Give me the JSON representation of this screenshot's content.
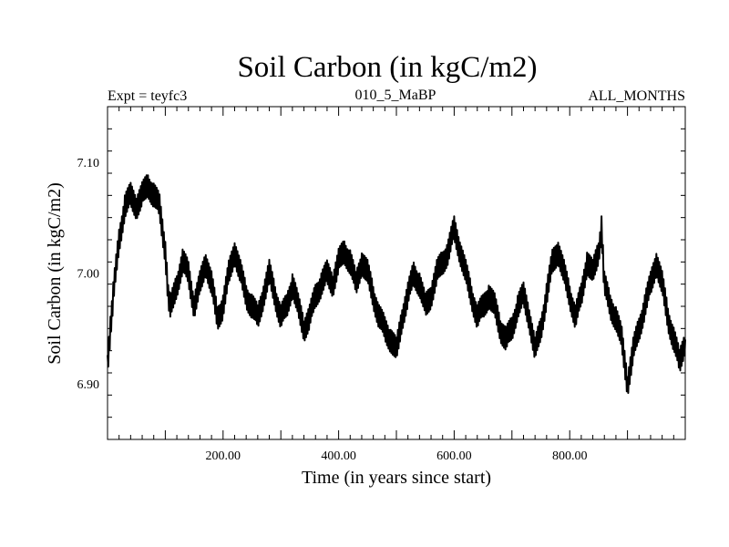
{
  "chart_data": {
    "type": "line",
    "title": "Soil Carbon (in kgC/m2)",
    "subtitle_left": "Expt = teyfc3",
    "subtitle_center": "010_5_MaBP",
    "subtitle_right": "ALL_MONTHS",
    "xlabel": "Time (in years since start)",
    "ylabel": "Soil Carbon (in kgC/m2)",
    "xlim": [
      0,
      1000
    ],
    "ylim": [
      6.85,
      7.15
    ],
    "x_ticks": [
      200,
      400,
      600,
      800
    ],
    "x_tick_labels": [
      "200.00",
      "400.00",
      "600.00",
      "800.00"
    ],
    "y_ticks": [
      6.9,
      7.0,
      7.1
    ],
    "y_tick_labels": [
      "6.90",
      "7.00",
      "7.10"
    ],
    "grid": false,
    "series": [
      {
        "color": "#000000",
        "x": [
          0,
          5,
          10,
          20,
          30,
          40,
          50,
          60,
          70,
          80,
          90,
          100,
          105,
          110,
          120,
          130,
          140,
          150,
          160,
          170,
          180,
          190,
          200,
          210,
          220,
          230,
          240,
          250,
          260,
          270,
          280,
          290,
          300,
          310,
          320,
          330,
          340,
          350,
          360,
          370,
          380,
          390,
          400,
          410,
          420,
          430,
          440,
          450,
          460,
          470,
          480,
          490,
          500,
          510,
          520,
          530,
          540,
          550,
          560,
          570,
          580,
          590,
          600,
          610,
          620,
          630,
          640,
          650,
          660,
          670,
          680,
          690,
          700,
          710,
          720,
          730,
          740,
          750,
          760,
          770,
          780,
          790,
          800,
          810,
          820,
          830,
          840,
          850,
          855,
          860,
          870,
          880,
          890,
          900,
          910,
          920,
          930,
          940,
          950,
          960,
          970,
          980,
          990,
          1000
        ],
        "values": [
          6.92,
          6.95,
          6.98,
          7.03,
          7.06,
          7.07,
          7.06,
          7.07,
          7.08,
          7.07,
          7.06,
          7.02,
          6.98,
          6.97,
          6.99,
          7.01,
          7.0,
          6.97,
          6.99,
          7.01,
          6.99,
          6.96,
          6.97,
          7.0,
          7.02,
          7.0,
          6.98,
          6.97,
          6.96,
          6.98,
          7.0,
          6.98,
          6.96,
          6.97,
          6.99,
          6.97,
          6.95,
          6.96,
          6.98,
          6.99,
          7.0,
          6.99,
          7.01,
          7.02,
          7.01,
          6.99,
          7.01,
          7.0,
          6.98,
          6.96,
          6.95,
          6.94,
          6.93,
          6.96,
          6.98,
          7.0,
          6.99,
          6.97,
          6.98,
          7.0,
          7.01,
          7.02,
          7.04,
          7.02,
          7.0,
          6.98,
          6.96,
          6.97,
          6.98,
          6.97,
          6.95,
          6.94,
          6.95,
          6.97,
          6.98,
          6.96,
          6.93,
          6.95,
          6.98,
          7.01,
          7.02,
          7.0,
          6.98,
          6.96,
          6.98,
          7.01,
          7.0,
          7.02,
          7.04,
          6.99,
          6.97,
          6.96,
          6.94,
          6.9,
          6.93,
          6.95,
          6.97,
          6.99,
          7.01,
          6.99,
          6.96,
          6.94,
          6.92,
          6.94
        ]
      }
    ]
  }
}
